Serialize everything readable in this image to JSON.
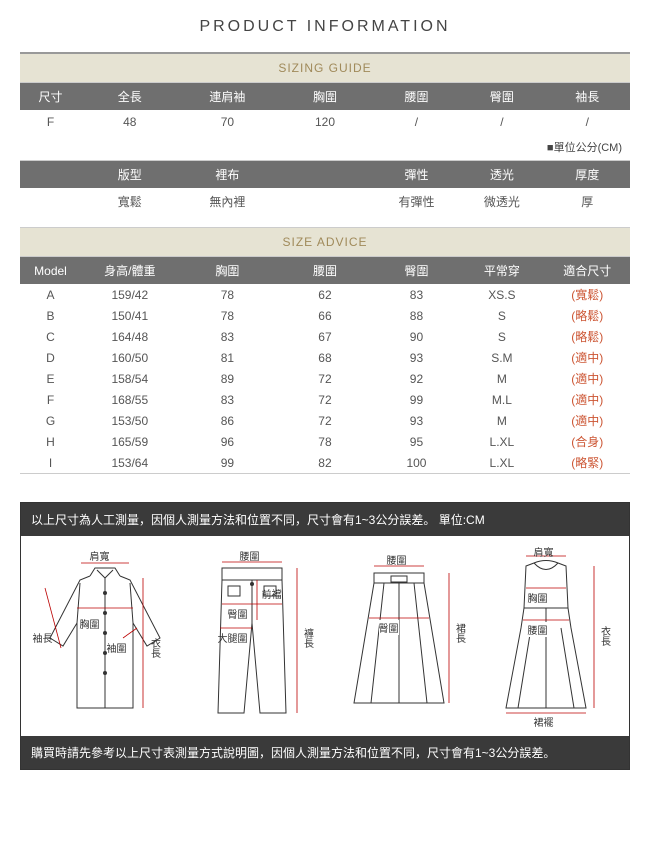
{
  "title": "PRODUCT INFORMATION",
  "sizing_guide": {
    "heading": "SIZING GUIDE",
    "headers1": [
      "尺寸",
      "全長",
      "連肩袖",
      "胸圍",
      "腰圍",
      "臀圍",
      "袖長"
    ],
    "row1": [
      "F",
      "48",
      "70",
      "120",
      "/",
      "/",
      "/"
    ],
    "unit_label": "■單位公分(CM)",
    "headers2": [
      "",
      "版型",
      "裡布",
      "",
      "彈性",
      "透光",
      "厚度"
    ],
    "row2": [
      "",
      "寬鬆",
      "無內裡",
      "",
      "有彈性",
      "微透光",
      "厚"
    ]
  },
  "size_advice": {
    "heading": "SIZE ADVICE",
    "headers": [
      "Model",
      "身高/體重",
      "胸圍",
      "腰圍",
      "臀圍",
      "平常穿",
      "適合尺寸"
    ],
    "rows": [
      {
        "model": "A",
        "hw": "159/42",
        "bust": "78",
        "waist": "62",
        "hip": "83",
        "usual": "XS.S",
        "fit": "(寬鬆)",
        "fit_color": "#cc5533"
      },
      {
        "model": "B",
        "hw": "150/41",
        "bust": "78",
        "waist": "66",
        "hip": "88",
        "usual": "S",
        "fit": "(略鬆)",
        "fit_color": "#cc5533"
      },
      {
        "model": "C",
        "hw": "164/48",
        "bust": "83",
        "waist": "67",
        "hip": "90",
        "usual": "S",
        "fit": "(略鬆)",
        "fit_color": "#cc5533"
      },
      {
        "model": "D",
        "hw": "160/50",
        "bust": "81",
        "waist": "68",
        "hip": "93",
        "usual": "S.M",
        "fit": "(適中)",
        "fit_color": "#cc5533"
      },
      {
        "model": "E",
        "hw": "158/54",
        "bust": "89",
        "waist": "72",
        "hip": "92",
        "usual": "M",
        "fit": "(適中)",
        "fit_color": "#cc5533"
      },
      {
        "model": "F",
        "hw": "168/55",
        "bust": "83",
        "waist": "72",
        "hip": "99",
        "usual": "M.L",
        "fit": "(適中)",
        "fit_color": "#cc5533"
      },
      {
        "model": "G",
        "hw": "153/50",
        "bust": "86",
        "waist": "72",
        "hip": "93",
        "usual": "M",
        "fit": "(適中)",
        "fit_color": "#cc5533"
      },
      {
        "model": "H",
        "hw": "165/59",
        "bust": "96",
        "waist": "78",
        "hip": "95",
        "usual": "L.XL",
        "fit": "(合身)",
        "fit_color": "#cc5533"
      },
      {
        "model": "I",
        "hw": "153/64",
        "bust": "99",
        "waist": "82",
        "hip": "100",
        "usual": "L.XL",
        "fit": "(略緊)",
        "fit_color": "#cc5533"
      }
    ]
  },
  "bottom": {
    "note1": "以上尺寸為人工測量，因個人測量方法和位置不同，尺寸會有1~3公分誤差。 單位:CM",
    "note2": "購買時請先參考以上尺寸表測量方式說明圖，因個人測量方法和位置不同，尺寸會有1~3公分誤差。",
    "diagrams": {
      "shirt": {
        "labels": {
          "shoulder": "肩寬",
          "sleeve": "袖長",
          "bust": "胸圍",
          "cuff": "袖圍",
          "length": "衣長"
        }
      },
      "pants": {
        "labels": {
          "waist": "腰圍",
          "rise": "前襠",
          "hip": "臀圍",
          "thigh": "大腿圍",
          "plen": "褲長"
        }
      },
      "skirt": {
        "labels": {
          "waist": "腰圍",
          "hip": "臀圍",
          "slen": "裙長"
        }
      },
      "dress": {
        "labels": {
          "shoulder": "肩寬",
          "bust": "胸圍",
          "waist": "腰圍",
          "length": "衣長",
          "hem": "裙襬"
        }
      }
    }
  },
  "colors": {
    "header_bg": "#6f6f6f",
    "header_text": "#ffffff",
    "section_bg": "#e6e3d3",
    "section_text": "#a08a5a",
    "dark_bar_bg": "#3a3a3a",
    "fit_text": "#cc5533",
    "border": "#cccccc"
  }
}
